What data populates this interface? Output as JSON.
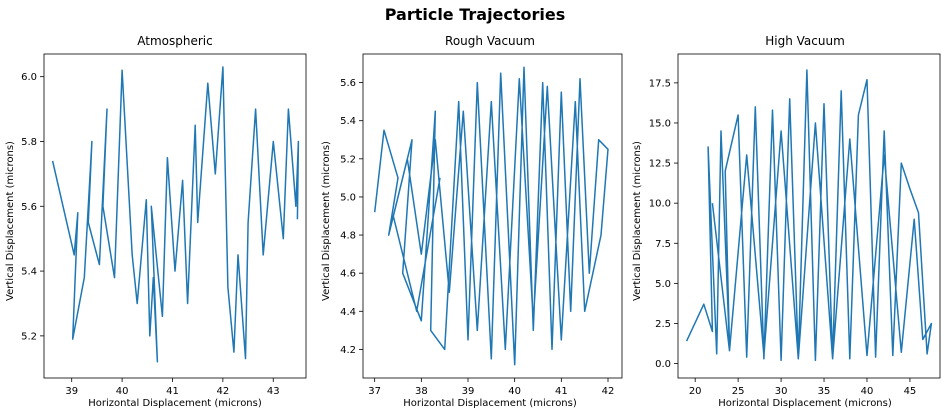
{
  "figure": {
    "suptitle": "Particle Trajectories",
    "line_color": "#1f77b4"
  },
  "chart_data": [
    {
      "type": "line",
      "title": "Atmospheric",
      "xlabel": "Horizontal Displacement (microns)",
      "ylabel": "Vertical Displacement (microns)",
      "xlim": [
        38.45,
        43.65
      ],
      "ylim": [
        5.07,
        6.07
      ],
      "xticks": [
        39,
        40,
        41,
        42,
        43
      ],
      "xtick_labels": [
        "39",
        "40",
        "41",
        "42",
        "43"
      ],
      "yticks": [
        5.2,
        5.4,
        5.6,
        5.8,
        6.0
      ],
      "ytick_labels": [
        "5.2",
        "5.4",
        "5.6",
        "5.8",
        "6.0"
      ],
      "grid": false,
      "series": [
        {
          "x": [
            38.62,
            39.05,
            39.12,
            39.02,
            39.25,
            39.4,
            39.33,
            39.55,
            39.7,
            39.62,
            39.85,
            40.0,
            40.2,
            40.3,
            40.48,
            40.55,
            40.62,
            40.7,
            40.58,
            40.8,
            40.9,
            41.05,
            41.2,
            41.3,
            41.45,
            41.5,
            41.7,
            41.85,
            42.0,
            42.1,
            42.22,
            42.3,
            42.45,
            42.5,
            42.65,
            42.8,
            43.0,
            43.2,
            43.3,
            43.45,
            43.5,
            43.48
          ],
          "y": [
            5.74,
            5.45,
            5.58,
            5.19,
            5.38,
            5.8,
            5.55,
            5.42,
            5.9,
            5.6,
            5.38,
            6.02,
            5.45,
            5.3,
            5.62,
            5.2,
            5.38,
            5.12,
            5.6,
            5.26,
            5.75,
            5.4,
            5.68,
            5.3,
            5.85,
            5.55,
            5.98,
            5.7,
            6.03,
            5.35,
            5.15,
            5.45,
            5.13,
            5.55,
            5.9,
            5.45,
            5.8,
            5.5,
            5.9,
            5.6,
            5.8,
            5.56
          ]
        }
      ]
    },
    {
      "type": "line",
      "title": "Rough Vacuum",
      "xlabel": "Horizontal Displacement (microns)",
      "ylabel": "Vertical Displacement (microns)",
      "xlim": [
        36.75,
        42.3
      ],
      "ylim": [
        4.05,
        5.75
      ],
      "xticks": [
        37,
        38,
        39,
        40,
        41,
        42
      ],
      "xtick_labels": [
        "37",
        "38",
        "39",
        "40",
        "41",
        "42"
      ],
      "yticks": [
        4.2,
        4.4,
        4.6,
        4.8,
        5.0,
        5.2,
        5.4,
        5.6
      ],
      "ytick_labels": [
        "4.2",
        "4.4",
        "4.6",
        "4.8",
        "5.0",
        "5.2",
        "5.4",
        "5.6"
      ],
      "grid": false,
      "series": [
        {
          "x": [
            37.0,
            37.2,
            37.5,
            37.3,
            37.8,
            37.6,
            38.0,
            38.3,
            38.2,
            38.5,
            38.8,
            39.0,
            39.2,
            39.5,
            39.7,
            40.0,
            40.2,
            40.4,
            40.6,
            40.8,
            41.0,
            41.2,
            41.4,
            41.6,
            41.8,
            42.0,
            41.85,
            41.5,
            41.3,
            41.0,
            40.7,
            40.4,
            40.1,
            39.8,
            39.5,
            39.2,
            38.9,
            38.6,
            38.3,
            38.0,
            37.7,
            37.4,
            37.9,
            38.4
          ],
          "y": [
            4.92,
            5.35,
            5.1,
            4.8,
            5.3,
            4.6,
            4.35,
            5.45,
            4.3,
            4.2,
            5.5,
            4.25,
            5.6,
            4.15,
            5.65,
            4.12,
            5.68,
            4.3,
            5.6,
            4.2,
            5.55,
            4.4,
            5.62,
            4.6,
            5.3,
            5.25,
            4.8,
            4.4,
            5.5,
            4.25,
            5.58,
            4.35,
            5.62,
            4.2,
            5.5,
            4.3,
            5.45,
            4.5,
            5.3,
            4.7,
            5.2,
            4.9,
            4.4,
            5.1
          ]
        }
      ]
    },
    {
      "type": "line",
      "title": "High Vacuum",
      "xlabel": "Horizontal Displacement (microns)",
      "ylabel": "Vertical Displacement (microns)",
      "xlim": [
        18.0,
        48.5
      ],
      "ylim": [
        -0.9,
        19.3
      ],
      "xticks": [
        20,
        25,
        30,
        35,
        40,
        45
      ],
      "xtick_labels": [
        "20",
        "25",
        "30",
        "35",
        "40",
        "45"
      ],
      "yticks": [
        0.0,
        2.5,
        5.0,
        7.5,
        10.0,
        12.5,
        15.0,
        17.5
      ],
      "ytick_labels": [
        "0.0",
        "2.5",
        "5.0",
        "7.5",
        "10.0",
        "12.5",
        "15.0",
        "17.5"
      ],
      "grid": false,
      "series": [
        {
          "x": [
            19.0,
            21.0,
            22.0,
            21.5,
            22.5,
            23.0,
            24.0,
            23.5,
            25.0,
            26.0,
            27.0,
            28.0,
            29.0,
            30.0,
            31.0,
            32.0,
            33.0,
            34.0,
            35.0,
            36.0,
            37.0,
            38.0,
            39.0,
            40.0,
            41.0,
            42.0,
            43.0,
            44.0,
            45.0,
            46.0,
            47.0,
            47.5,
            46.5,
            45.5,
            44.0,
            42.0,
            40.0,
            38.0,
            36.0,
            34.0,
            32.0,
            30.0,
            28.0,
            26.0,
            24.0,
            22.0
          ],
          "y": [
            1.4,
            3.7,
            2.0,
            13.5,
            0.6,
            14.5,
            1.0,
            12.0,
            15.5,
            0.4,
            16.0,
            0.3,
            15.8,
            0.2,
            16.5,
            0.3,
            18.3,
            0.2,
            16.2,
            0.3,
            17.0,
            0.3,
            15.5,
            17.7,
            0.4,
            14.5,
            0.5,
            12.5,
            10.9,
            9.4,
            0.6,
            2.5,
            1.5,
            9.0,
            0.7,
            13.0,
            0.5,
            14.0,
            0.3,
            15.0,
            0.3,
            14.5,
            0.5,
            13.0,
            0.8,
            10.0
          ]
        }
      ]
    }
  ]
}
